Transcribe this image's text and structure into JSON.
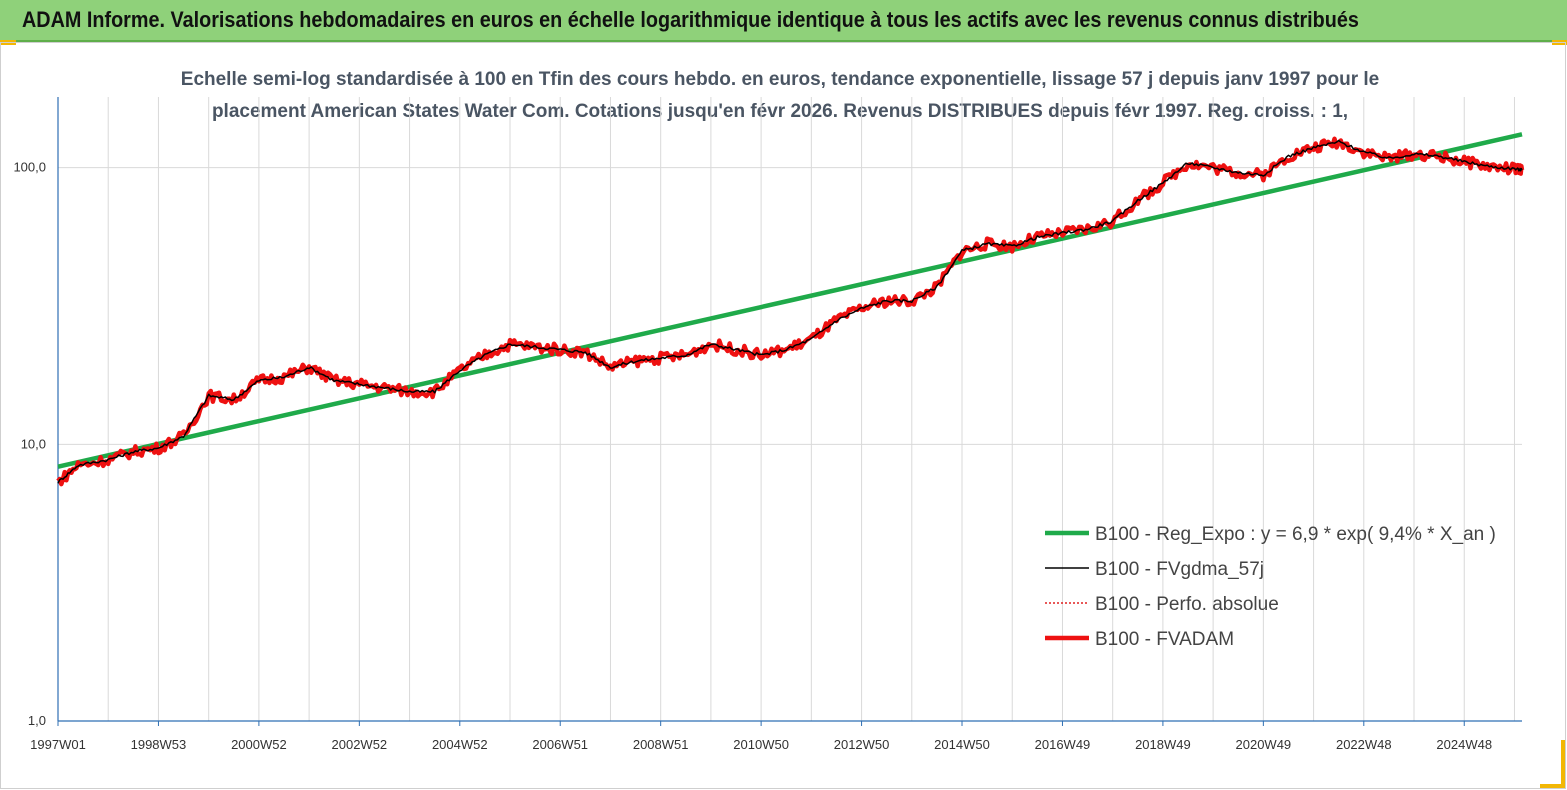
{
  "banner": {
    "title": "ADAM Informe. Valorisations hebdomadaires en euros en échelle logarithmique identique à tous les actifs avec les revenus connus distribués"
  },
  "chart_data": {
    "type": "line",
    "title_lines": [
      "Echelle semi-log standardisée à 100 en Tfin des cours hebdo. en euros, tendance exponentielle, lissage 57 j depuis janv 1997 pour le",
      "placement American States Water Com. Cotations jusqu'en févr 2026. Revenus DISTRIBUES depuis févr 1997. Reg. croiss. : 1,"
    ],
    "y_scale": "log",
    "ylim": [
      1,
      180
    ],
    "xlim": [
      1997.0,
      2026.15
    ],
    "y_ticks": [
      {
        "value": 1,
        "label": "1,0"
      },
      {
        "value": 10,
        "label": "10,0"
      },
      {
        "value": 100,
        "label": "100,0"
      }
    ],
    "x_ticks": [
      {
        "value": 1997.0,
        "label": "1997W01"
      },
      {
        "value": 1999.0,
        "label": "1998W53"
      },
      {
        "value": 2001.0,
        "label": "2000W52"
      },
      {
        "value": 2003.0,
        "label": "2002W52"
      },
      {
        "value": 2005.0,
        "label": "2004W52"
      },
      {
        "value": 2007.0,
        "label": "2006W51"
      },
      {
        "value": 2009.0,
        "label": "2008W51"
      },
      {
        "value": 2011.0,
        "label": "2010W50"
      },
      {
        "value": 2013.0,
        "label": "2012W50"
      },
      {
        "value": 2015.0,
        "label": "2014W50"
      },
      {
        "value": 2017.0,
        "label": "2016W49"
      },
      {
        "value": 2019.0,
        "label": "2018W49"
      },
      {
        "value": 2021.0,
        "label": "2020W49"
      },
      {
        "value": 2023.0,
        "label": "2022W48"
      },
      {
        "value": 2025.0,
        "label": "2024W48"
      }
    ],
    "grid": true,
    "legend_position": "bottom-right",
    "series": [
      {
        "name": "B100 - Reg_Expo : y = 6,9 * exp( 9,4% *  X_an )",
        "color": "#1faa4a",
        "style": "solid-thick",
        "x": [
          1997.0,
          2026.15
        ],
        "y": [
          8.3,
          132
        ]
      },
      {
        "name": "B100 - FVgdma_57j",
        "color": "#000000",
        "style": "solid-thin",
        "x": [
          1997.0,
          1997.4,
          1998.0,
          1998.5,
          1999.0,
          1999.5,
          2000.0,
          2000.5,
          2001.0,
          2001.5,
          2002.0,
          2002.5,
          2003.0,
          2003.5,
          2004.0,
          2004.5,
          2005.0,
          2005.5,
          2006.0,
          2006.5,
          2007.0,
          2007.5,
          2008.0,
          2008.5,
          2009.0,
          2009.5,
          2010.0,
          2010.5,
          2011.0,
          2011.5,
          2012.0,
          2012.5,
          2013.0,
          2013.5,
          2014.0,
          2014.5,
          2015.0,
          2015.5,
          2016.0,
          2016.5,
          2017.0,
          2017.5,
          2018.0,
          2018.5,
          2019.0,
          2019.5,
          2020.0,
          2020.5,
          2021.0,
          2021.5,
          2022.0,
          2022.5,
          2023.0,
          2023.5,
          2024.0,
          2024.5,
          2025.0,
          2025.5,
          2026.0,
          2026.15
        ],
        "y": [
          7.3,
          8.4,
          8.8,
          9.4,
          9.7,
          10.7,
          15.0,
          14.5,
          17.0,
          17.5,
          19.0,
          17.0,
          16.5,
          16.0,
          15.5,
          15.5,
          18.5,
          21.0,
          23.0,
          22.5,
          22.0,
          21.5,
          19.0,
          20.0,
          20.5,
          21.0,
          23.0,
          22.0,
          21.0,
          22.0,
          24.0,
          28.0,
          31.0,
          33.0,
          33.0,
          37.0,
          50.0,
          53.0,
          52.0,
          56.0,
          58.0,
          60.0,
          64.0,
          76.0,
          88.0,
          104.0,
          100.0,
          96.0,
          94.0,
          110.0,
          118.0,
          124.0,
          114.0,
          108.0,
          112.0,
          110.0,
          105.0,
          101.0,
          99.0,
          98.0
        ]
      },
      {
        "name": "B100 - Perfo. absolue",
        "color": "#e02020",
        "style": "dotted"
      },
      {
        "name": "B100 - FVADAM",
        "color": "#ee1111",
        "style": "solid-thick",
        "x": [
          1997.0,
          1997.4,
          1998.0,
          1998.5,
          1999.0,
          1999.5,
          2000.0,
          2000.5,
          2001.0,
          2001.5,
          2002.0,
          2002.5,
          2003.0,
          2003.5,
          2004.0,
          2004.5,
          2005.0,
          2005.5,
          2006.0,
          2006.5,
          2007.0,
          2007.5,
          2008.0,
          2008.5,
          2009.0,
          2009.5,
          2010.0,
          2010.5,
          2011.0,
          2011.5,
          2012.0,
          2012.5,
          2013.0,
          2013.5,
          2014.0,
          2014.5,
          2015.0,
          2015.5,
          2016.0,
          2016.5,
          2017.0,
          2017.5,
          2018.0,
          2018.5,
          2019.0,
          2019.5,
          2020.0,
          2020.5,
          2021.0,
          2021.5,
          2022.0,
          2022.5,
          2023.0,
          2023.5,
          2024.0,
          2024.5,
          2025.0,
          2025.5,
          2026.0,
          2026.15
        ],
        "y": [
          7.3,
          8.4,
          8.8,
          9.4,
          9.7,
          10.7,
          15.0,
          14.5,
          17.0,
          17.5,
          19.0,
          17.0,
          16.5,
          16.0,
          15.5,
          15.5,
          18.5,
          21.0,
          23.0,
          22.5,
          22.0,
          21.5,
          19.0,
          20.0,
          20.5,
          21.0,
          23.0,
          22.0,
          21.0,
          22.0,
          24.0,
          28.0,
          31.0,
          33.0,
          33.0,
          37.0,
          50.0,
          53.0,
          52.0,
          56.0,
          58.0,
          60.0,
          64.0,
          76.0,
          88.0,
          104.0,
          100.0,
          96.0,
          94.0,
          110.0,
          118.0,
          124.0,
          114.0,
          108.0,
          112.0,
          110.0,
          105.0,
          101.0,
          99.0,
          98.0
        ]
      }
    ]
  }
}
